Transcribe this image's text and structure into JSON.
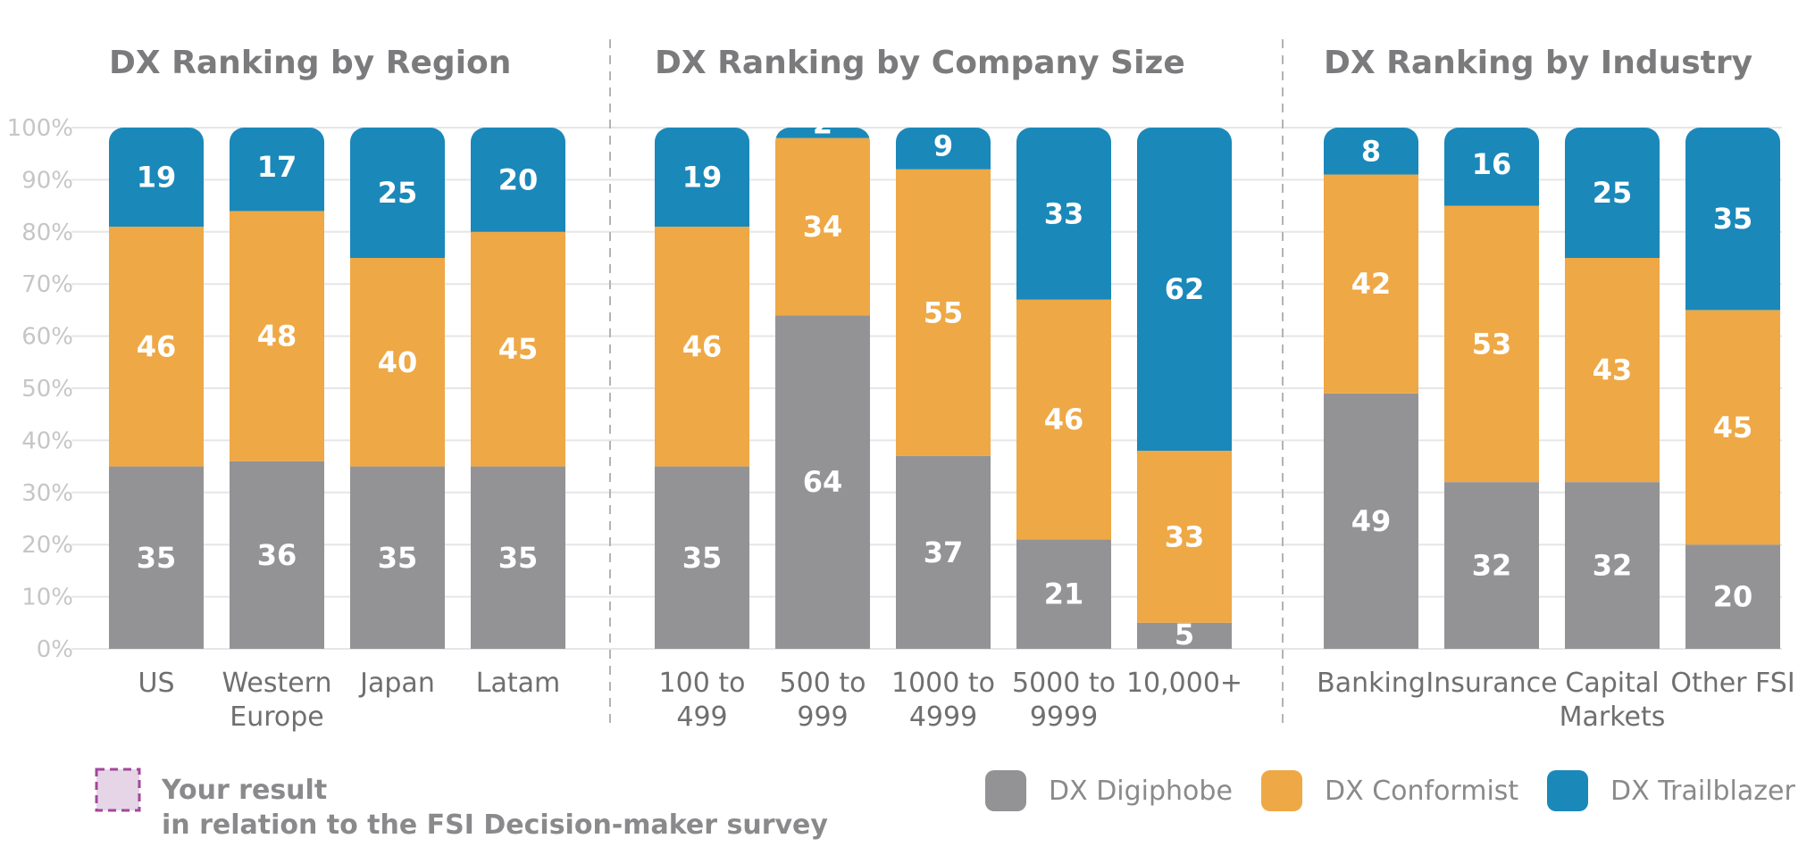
{
  "chart_data": [
    {
      "type": "bar",
      "stacked": true,
      "title": "DX Ranking by Region",
      "categories": [
        [
          "US"
        ],
        [
          "Western",
          "Europe"
        ],
        [
          "Japan"
        ],
        [
          "Latam"
        ]
      ],
      "series": [
        {
          "name": "DX Digiphobe",
          "values": [
            35,
            36,
            35,
            35
          ]
        },
        {
          "name": "DX Conformist",
          "values": [
            46,
            48,
            40,
            45
          ]
        },
        {
          "name": "DX Trailblazer",
          "values": [
            19,
            17,
            25,
            20
          ]
        }
      ],
      "ylim": [
        0,
        100
      ]
    },
    {
      "type": "bar",
      "stacked": true,
      "title": "DX Ranking by Company Size",
      "categories": [
        [
          "100 to",
          "499"
        ],
        [
          "500 to",
          "999"
        ],
        [
          "1000 to",
          "4999"
        ],
        [
          "5000 to",
          "9999"
        ],
        [
          "10,000+"
        ]
      ],
      "series": [
        {
          "name": "DX Digiphobe",
          "values": [
            35,
            64,
            37,
            21,
            5
          ]
        },
        {
          "name": "DX Conformist",
          "values": [
            46,
            34,
            55,
            46,
            33
          ]
        },
        {
          "name": "DX Trailblazer",
          "values": [
            19,
            2,
            9,
            33,
            62
          ]
        }
      ],
      "ylim": [
        0,
        100
      ]
    },
    {
      "type": "bar",
      "stacked": true,
      "title": "DX Ranking by Industry",
      "categories": [
        [
          "Banking"
        ],
        [
          "Insurance"
        ],
        [
          "Capital",
          "Markets"
        ],
        [
          "Other FSI"
        ]
      ],
      "series": [
        {
          "name": "DX Digiphobe",
          "values": [
            49,
            32,
            32,
            20
          ]
        },
        {
          "name": "DX Conformist",
          "values": [
            42,
            53,
            43,
            45
          ]
        },
        {
          "name": "DX Trailblazer",
          "values": [
            8,
            16,
            25,
            35
          ]
        }
      ],
      "ylim": [
        0,
        100
      ]
    }
  ],
  "y_ticks": [
    "0%",
    "10%",
    "20%",
    "30%",
    "40%",
    "50%",
    "60%",
    "70%",
    "80%",
    "90%",
    "100%"
  ],
  "grid": true,
  "colors": {
    "DX Digiphobe": "#939396",
    "DX Conformist": "#eea845",
    "DX Trailblazer": "#1a88b9"
  },
  "legend": {
    "placement": "bottom-right",
    "items": [
      "DX Digiphobe",
      "DX Conformist",
      "DX Trailblazer"
    ]
  },
  "note": {
    "line1": "Your result",
    "line2": "in relation to the FSI Decision-maker survey"
  }
}
